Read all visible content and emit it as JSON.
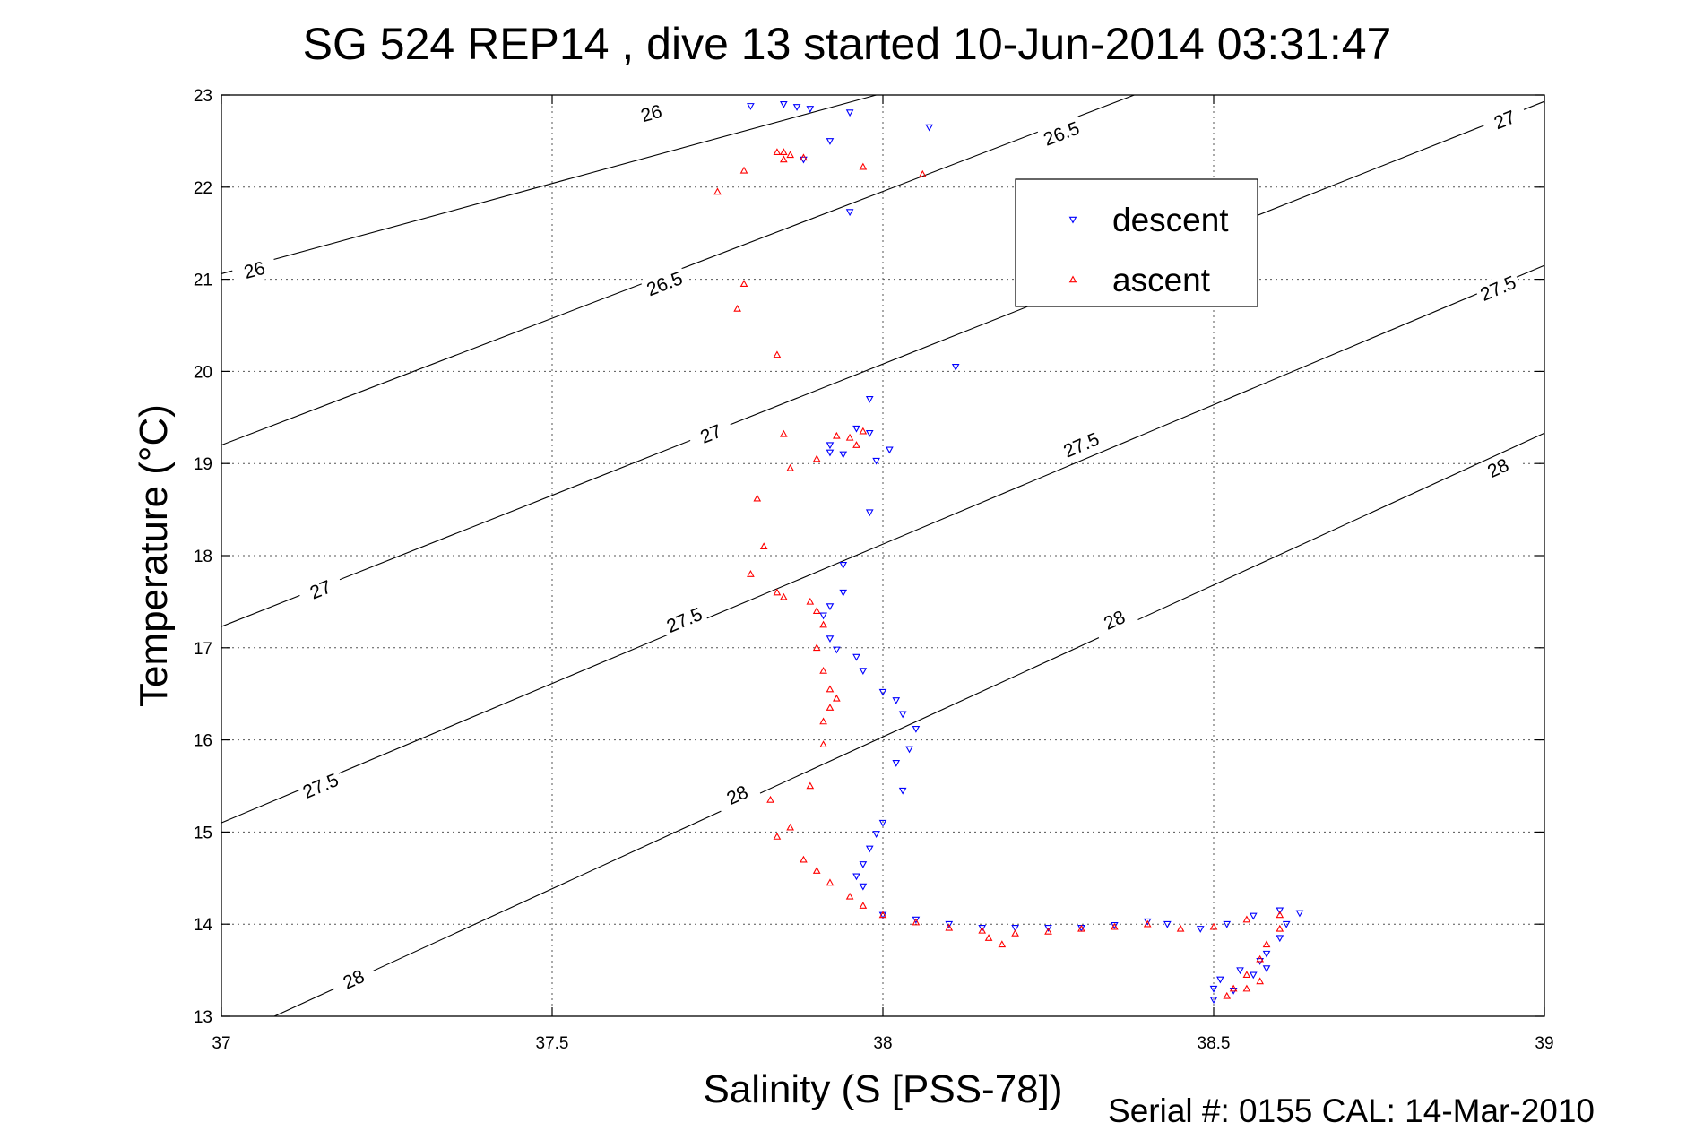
{
  "chart_data": {
    "type": "scatter",
    "title": "SG 524   REP14  , dive 13 started 10-Jun-2014 03:31:47",
    "xlabel": "Salinity (S [PSS-78])",
    "ylabel": "Temperature (°C)",
    "xlim": [
      37,
      39
    ],
    "ylim": [
      13,
      23
    ],
    "x_ticks": [
      "37",
      "37.5",
      "38",
      "38.5",
      "39"
    ],
    "y_ticks": [
      "13",
      "14",
      "15",
      "16",
      "17",
      "18",
      "19",
      "20",
      "21",
      "22",
      "23"
    ],
    "grid": true,
    "legend_position": "upper-right",
    "footer": "Serial #: 0155  CAL: 14-Mar-2010",
    "density_contours": [
      {
        "level": "26",
        "start": [
          37,
          21.06
        ],
        "end": [
          37.99,
          23
        ],
        "labels": [
          [
            37.05,
            21.1
          ],
          [
            37.65,
            22.8
          ]
        ]
      },
      {
        "level": "26.5",
        "start": [
          37,
          19.2
        ],
        "end": [
          38.38,
          23
        ],
        "labels": [
          [
            37.67,
            20.95
          ],
          [
            38.27,
            22.58
          ]
        ]
      },
      {
        "level": "27",
        "start": [
          37,
          17.23
        ],
        "end": [
          39,
          22.93
        ],
        "labels": [
          [
            37.15,
            17.63
          ],
          [
            37.74,
            19.32
          ],
          [
            38.94,
            22.73
          ]
        ]
      },
      {
        "level": "27.5",
        "start": [
          37,
          15.1
        ],
        "end": [
          39,
          21.15
        ],
        "labels": [
          [
            37.15,
            15.5
          ],
          [
            37.7,
            17.3
          ],
          [
            38.3,
            19.2
          ],
          [
            38.93,
            20.9
          ]
        ]
      },
      {
        "level": "28",
        "start": [
          37.08,
          13
        ],
        "end": [
          39,
          19.33
        ],
        "labels": [
          [
            37.2,
            13.4
          ],
          [
            37.78,
            15.4
          ],
          [
            38.35,
            17.3
          ],
          [
            38.93,
            18.95
          ]
        ]
      }
    ],
    "series": [
      {
        "name": "descent",
        "color": "#0000ff",
        "marker": "triangle-down",
        "points": [
          [
            37.8,
            22.88
          ],
          [
            37.85,
            22.9
          ],
          [
            37.87,
            22.87
          ],
          [
            37.89,
            22.85
          ],
          [
            37.95,
            22.81
          ],
          [
            38.07,
            22.65
          ],
          [
            37.92,
            22.5
          ],
          [
            37.88,
            22.3
          ],
          [
            37.95,
            21.73
          ],
          [
            38.11,
            20.05
          ],
          [
            37.98,
            19.7
          ],
          [
            37.96,
            19.38
          ],
          [
            37.98,
            19.33
          ],
          [
            37.92,
            19.2
          ],
          [
            37.94,
            19.1
          ],
          [
            37.92,
            19.12
          ],
          [
            38.01,
            19.15
          ],
          [
            37.99,
            19.03
          ],
          [
            37.98,
            18.47
          ],
          [
            37.94,
            17.9
          ],
          [
            37.94,
            17.6
          ],
          [
            37.92,
            17.45
          ],
          [
            37.91,
            17.35
          ],
          [
            37.92,
            17.1
          ],
          [
            37.93,
            16.98
          ],
          [
            37.96,
            16.9
          ],
          [
            37.97,
            16.75
          ],
          [
            38,
            16.52
          ],
          [
            38.02,
            16.43
          ],
          [
            38.03,
            16.28
          ],
          [
            38.05,
            16.12
          ],
          [
            38.04,
            15.9
          ],
          [
            38.02,
            15.75
          ],
          [
            38.03,
            15.45
          ],
          [
            38,
            15.1
          ],
          [
            37.99,
            14.98
          ],
          [
            37.98,
            14.82
          ],
          [
            37.97,
            14.65
          ],
          [
            37.96,
            14.52
          ],
          [
            37.97,
            14.41
          ],
          [
            38,
            14.1
          ],
          [
            38.05,
            14.05
          ],
          [
            38.1,
            14.0
          ],
          [
            38.15,
            13.96
          ],
          [
            38.2,
            13.96
          ],
          [
            38.25,
            13.96
          ],
          [
            38.3,
            13.96
          ],
          [
            38.35,
            13.99
          ],
          [
            38.4,
            14.03
          ],
          [
            38.43,
            14.0
          ],
          [
            38.48,
            13.95
          ],
          [
            38.52,
            14.0
          ],
          [
            38.56,
            14.09
          ],
          [
            38.6,
            14.15
          ],
          [
            38.63,
            14.12
          ],
          [
            38.61,
            14.0
          ],
          [
            38.6,
            13.85
          ],
          [
            38.58,
            13.68
          ],
          [
            38.57,
            13.6
          ],
          [
            38.54,
            13.5
          ],
          [
            38.51,
            13.4
          ],
          [
            38.5,
            13.3
          ],
          [
            38.5,
            13.18
          ],
          [
            38.53,
            13.28
          ],
          [
            38.56,
            13.45
          ],
          [
            38.58,
            13.52
          ]
        ]
      },
      {
        "name": "ascent",
        "color": "#ff0000",
        "marker": "triangle-up",
        "points": [
          [
            37.84,
            22.38
          ],
          [
            37.85,
            22.38
          ],
          [
            37.86,
            22.35
          ],
          [
            37.85,
            22.3
          ],
          [
            37.88,
            22.32
          ],
          [
            37.79,
            22.18
          ],
          [
            37.97,
            22.22
          ],
          [
            38.06,
            22.14
          ],
          [
            37.75,
            21.95
          ],
          [
            37.79,
            20.95
          ],
          [
            37.78,
            20.68
          ],
          [
            37.84,
            20.18
          ],
          [
            37.85,
            19.32
          ],
          [
            37.93,
            19.3
          ],
          [
            37.95,
            19.28
          ],
          [
            37.97,
            19.35
          ],
          [
            37.96,
            19.2
          ],
          [
            37.9,
            19.05
          ],
          [
            37.86,
            18.95
          ],
          [
            37.81,
            18.62
          ],
          [
            37.82,
            18.1
          ],
          [
            37.8,
            17.8
          ],
          [
            37.84,
            17.6
          ],
          [
            37.85,
            17.55
          ],
          [
            37.89,
            17.5
          ],
          [
            37.9,
            17.4
          ],
          [
            37.91,
            17.25
          ],
          [
            37.9,
            17.0
          ],
          [
            37.91,
            16.75
          ],
          [
            37.92,
            16.55
          ],
          [
            37.93,
            16.45
          ],
          [
            37.92,
            16.35
          ],
          [
            37.91,
            16.2
          ],
          [
            37.91,
            15.95
          ],
          [
            37.89,
            15.5
          ],
          [
            37.83,
            15.35
          ],
          [
            37.84,
            14.95
          ],
          [
            37.86,
            15.05
          ],
          [
            37.88,
            14.7
          ],
          [
            37.9,
            14.58
          ],
          [
            37.92,
            14.45
          ],
          [
            37.95,
            14.3
          ],
          [
            37.97,
            14.2
          ],
          [
            38,
            14.1
          ],
          [
            38.05,
            14.02
          ],
          [
            38.1,
            13.96
          ],
          [
            38.15,
            13.93
          ],
          [
            38.2,
            13.9
          ],
          [
            38.25,
            13.92
          ],
          [
            38.3,
            13.95
          ],
          [
            38.35,
            13.97
          ],
          [
            38.4,
            14.0
          ],
          [
            38.45,
            13.95
          ],
          [
            38.5,
            13.97
          ],
          [
            38.55,
            14.05
          ],
          [
            38.6,
            14.1
          ],
          [
            38.6,
            13.95
          ],
          [
            38.58,
            13.78
          ],
          [
            38.57,
            13.62
          ],
          [
            38.55,
            13.45
          ],
          [
            38.53,
            13.3
          ],
          [
            38.52,
            13.22
          ],
          [
            38.55,
            13.3
          ],
          [
            38.57,
            13.38
          ],
          [
            38.18,
            13.78
          ],
          [
            38.16,
            13.85
          ]
        ]
      }
    ]
  }
}
